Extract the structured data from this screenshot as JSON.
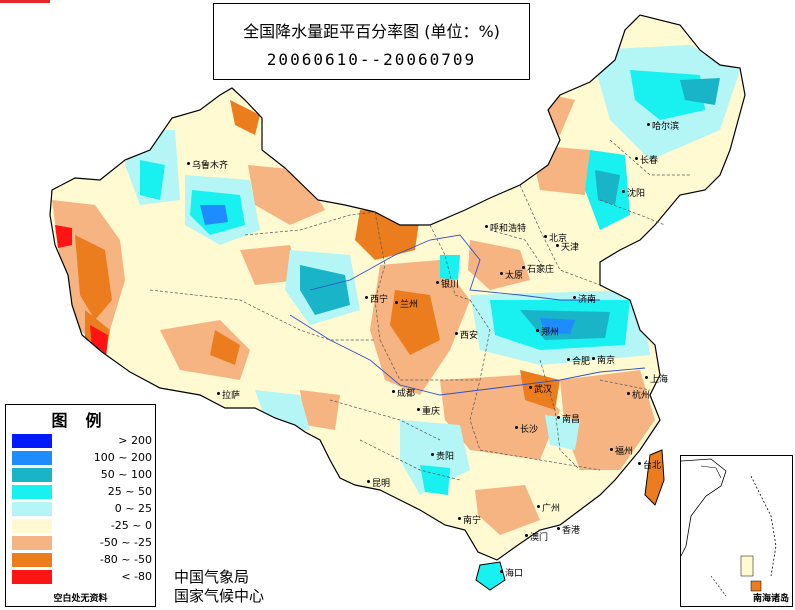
{
  "title": {
    "main": "全国降水量距平百分率图 (单位：%)",
    "date_range": "20060610--20060709"
  },
  "legend": {
    "title": "图例",
    "items": [
      {
        "label": "> 200",
        "color": "#0019ff"
      },
      {
        "label": "100 ~ 200",
        "color": "#1e8cff"
      },
      {
        "label": "50 ~ 100",
        "color": "#19b4c8"
      },
      {
        "label": "25 ~ 50",
        "color": "#19f0f0"
      },
      {
        "label": "0 ~ 25",
        "color": "#b4f5f5"
      },
      {
        "label": "-25 ~ 0",
        "color": "#fffad2"
      },
      {
        "label": "-50 ~ -25",
        "color": "#f5b482"
      },
      {
        "label": "-80 ~ -50",
        "color": "#eb7d1e"
      },
      {
        "label": "< -80",
        "color": "#ff1414"
      }
    ],
    "note": "空白处无资料"
  },
  "source": {
    "line1": "中国气象局",
    "line2": "国家气候中心"
  },
  "inset": {
    "label": "南海诸岛"
  },
  "cities": [
    {
      "name": "乌鲁木齐"
    },
    {
      "name": "哈尔滨"
    },
    {
      "name": "长春"
    },
    {
      "name": "沈阳"
    },
    {
      "name": "呼和浩特"
    },
    {
      "name": "北京"
    },
    {
      "name": "天津"
    },
    {
      "name": "石家庄"
    },
    {
      "name": "太原"
    },
    {
      "name": "银川"
    },
    {
      "name": "西宁"
    },
    {
      "name": "兰州"
    },
    {
      "name": "济南"
    },
    {
      "name": "郑州"
    },
    {
      "name": "西安"
    },
    {
      "name": "合肥"
    },
    {
      "name": "南京"
    },
    {
      "name": "上海"
    },
    {
      "name": "拉萨"
    },
    {
      "name": "成都"
    },
    {
      "name": "武汉"
    },
    {
      "name": "杭州"
    },
    {
      "name": "重庆"
    },
    {
      "name": "长沙"
    },
    {
      "name": "南昌"
    },
    {
      "name": "福州"
    },
    {
      "name": "贵阳"
    },
    {
      "name": "昆明"
    },
    {
      "name": "台北"
    },
    {
      "name": "南宁"
    },
    {
      "name": "广州"
    },
    {
      "name": "香港"
    },
    {
      "name": "澳门"
    },
    {
      "name": "海口"
    }
  ]
}
